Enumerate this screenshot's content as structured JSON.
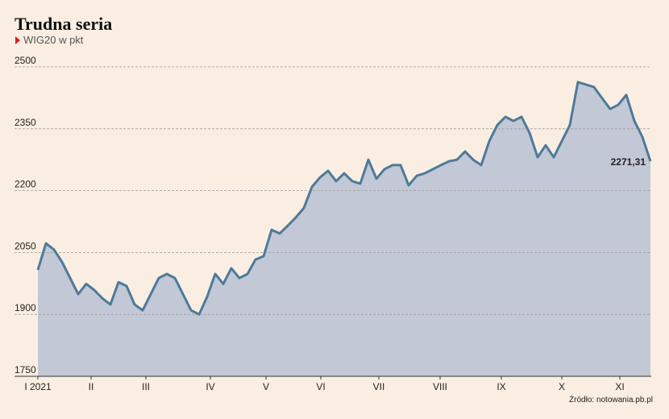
{
  "chart_data": {
    "type": "area",
    "title": "Trudna seria",
    "subtitle": "WIG20 w pkt",
    "source": "Źródło: notowania.pb.pl",
    "color": "#4d7a99",
    "fill_color": "#c3c8d6",
    "grid": true,
    "values": [
      2008,
      2072,
      2057,
      2027,
      1988,
      1949,
      1974,
      1959,
      1939,
      1924,
      1978,
      1969,
      1924,
      1910,
      1949,
      1988,
      1998,
      1988,
      1949,
      1910,
      1900,
      1943,
      1998,
      1974,
      2012,
      1988,
      1998,
      2033,
      2041,
      2105,
      2096,
      2115,
      2135,
      2158,
      2209,
      2232,
      2248,
      2223,
      2242,
      2223,
      2217,
      2275,
      2229,
      2252,
      2262,
      2262,
      2213,
      2236,
      2242,
      2252,
      2262,
      2271,
      2275,
      2295,
      2275,
      2262,
      2320,
      2359,
      2379,
      2369,
      2379,
      2340,
      2281,
      2310,
      2281,
      2320,
      2359,
      2463,
      2457,
      2451,
      2424,
      2398,
      2408,
      2432,
      2369,
      2330,
      2271.31
    ],
    "value_labels": [
      null,
      null,
      null,
      null,
      null,
      null,
      null,
      null,
      null,
      null,
      null,
      null,
      null,
      null,
      null,
      null,
      null,
      null,
      null,
      null,
      null,
      null,
      null,
      null,
      null,
      null,
      null,
      null,
      null,
      null,
      null,
      null,
      null,
      null,
      null,
      null,
      null,
      null,
      null,
      null,
      null,
      null,
      null,
      null,
      null,
      null,
      null,
      null,
      null,
      null,
      null,
      null,
      null,
      null,
      null,
      null,
      null,
      null,
      null,
      null,
      null,
      null,
      null,
      null,
      null,
      null,
      null,
      null,
      null,
      null,
      null,
      null,
      null,
      null,
      null,
      null,
      "2271,31"
    ],
    "xlim": [
      0,
      76
    ],
    "xticks": [
      {
        "value": 0,
        "label": "I 2021"
      },
      {
        "value": 6.6,
        "label": "II"
      },
      {
        "value": 13.4,
        "label": "III"
      },
      {
        "value": 21.4,
        "label": "IV"
      },
      {
        "value": 28.3,
        "label": "V"
      },
      {
        "value": 35.1,
        "label": "VI"
      },
      {
        "value": 42.3,
        "label": "VII"
      },
      {
        "value": 49.9,
        "label": "VIII"
      },
      {
        "value": 57.5,
        "label": "IX"
      },
      {
        "value": 65,
        "label": "X"
      },
      {
        "value": 72.2,
        "label": "XI"
      }
    ],
    "ylim": [
      1750,
      2500
    ],
    "yticks": [
      1750,
      1900,
      2050,
      2200,
      2350,
      2500
    ]
  }
}
